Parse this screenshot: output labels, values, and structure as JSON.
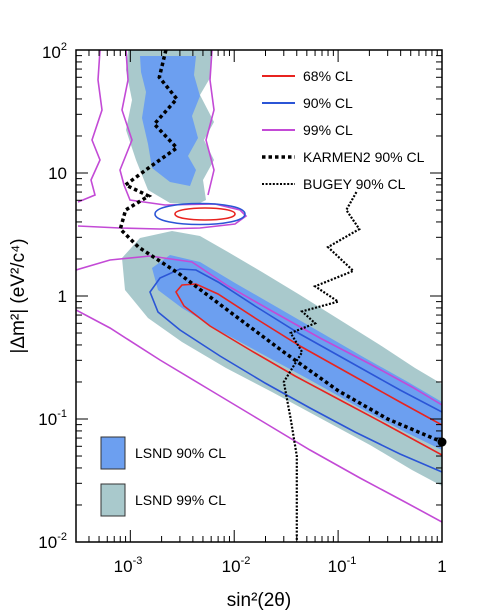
{
  "chart_data": {
    "type": "line",
    "xlabel": "sin²(2θ)",
    "ylabel": "|Δm²| (eV²/c⁴)",
    "xscale": "log",
    "yscale": "log",
    "xlim": [
      0.0003,
      1
    ],
    "ylim": [
      0.01,
      100
    ],
    "grid": false,
    "x_ticks": [
      {
        "value": 0.001,
        "base": "10",
        "exp": "-3"
      },
      {
        "value": 0.01,
        "base": "10",
        "exp": "-2"
      },
      {
        "value": 0.1,
        "base": "10",
        "exp": "-1"
      },
      {
        "value": 1,
        "base": "1",
        "exp": ""
      }
    ],
    "y_ticks": [
      {
        "value": 0.01,
        "base": "10",
        "exp": "-2"
      },
      {
        "value": 0.1,
        "base": "10",
        "exp": "-1"
      },
      {
        "value": 1,
        "base": "1",
        "exp": ""
      },
      {
        "value": 10,
        "base": "10",
        "exp": ""
      },
      {
        "value": 100,
        "base": "10",
        "exp": "2"
      }
    ],
    "legend_position": "top-right",
    "colors": {
      "lsnd90": "#6c9ff0",
      "lsnd99": "#a9c9cc",
      "cl68": "#e8231f",
      "cl90": "#2b55d6",
      "cl99": "#c34ad6"
    },
    "legend": [
      {
        "name": "68% CL",
        "style": "red"
      },
      {
        "name": "90% CL",
        "style": "blue"
      },
      {
        "name": "99% CL",
        "style": "magenta"
      },
      {
        "name": "KARMEN2 90% CL",
        "style": "dotted-thick"
      },
      {
        "name": "BUGEY 90% CL",
        "style": "dotted-thin"
      }
    ],
    "filled_legend": [
      {
        "name": "LSND 90% CL",
        "color_key": "lsnd90"
      },
      {
        "name": "LSND 99% CL",
        "color_key": "lsnd99"
      }
    ],
    "best_fit_point": {
      "x": 1,
      "y": 0.065
    },
    "series": [
      {
        "name": "KARMEN2 90% CL",
        "points": [
          [
            0.0022,
            100
          ],
          [
            0.0019,
            60
          ],
          [
            0.0028,
            40
          ],
          [
            0.0017,
            25
          ],
          [
            0.0028,
            16
          ],
          [
            0.0015,
            11
          ],
          [
            0.0009,
            8
          ],
          [
            0.0015,
            6.5
          ],
          [
            0.0009,
            5
          ],
          [
            0.0008,
            3.5
          ],
          [
            0.0012,
            2.5
          ],
          [
            0.003,
            1.5
          ],
          [
            0.01,
            0.7
          ],
          [
            0.03,
            0.35
          ],
          [
            0.1,
            0.17
          ],
          [
            0.3,
            0.1
          ],
          [
            1,
            0.065
          ]
        ]
      },
      {
        "name": "BUGEY 90% CL",
        "points": [
          [
            0.15,
            7
          ],
          [
            0.12,
            5
          ],
          [
            0.16,
            3.5
          ],
          [
            0.08,
            2.5
          ],
          [
            0.14,
            1.6
          ],
          [
            0.06,
            1.2
          ],
          [
            0.1,
            0.9
          ],
          [
            0.045,
            0.75
          ],
          [
            0.06,
            0.6
          ],
          [
            0.035,
            0.5
          ],
          [
            0.045,
            0.35
          ],
          [
            0.03,
            0.2
          ],
          [
            0.035,
            0.1
          ],
          [
            0.04,
            0.05
          ],
          [
            0.04,
            0.01
          ]
        ]
      }
    ],
    "legend_filled_labels": [
      "LSND 90% CL",
      "LSND 99% CL"
    ]
  }
}
